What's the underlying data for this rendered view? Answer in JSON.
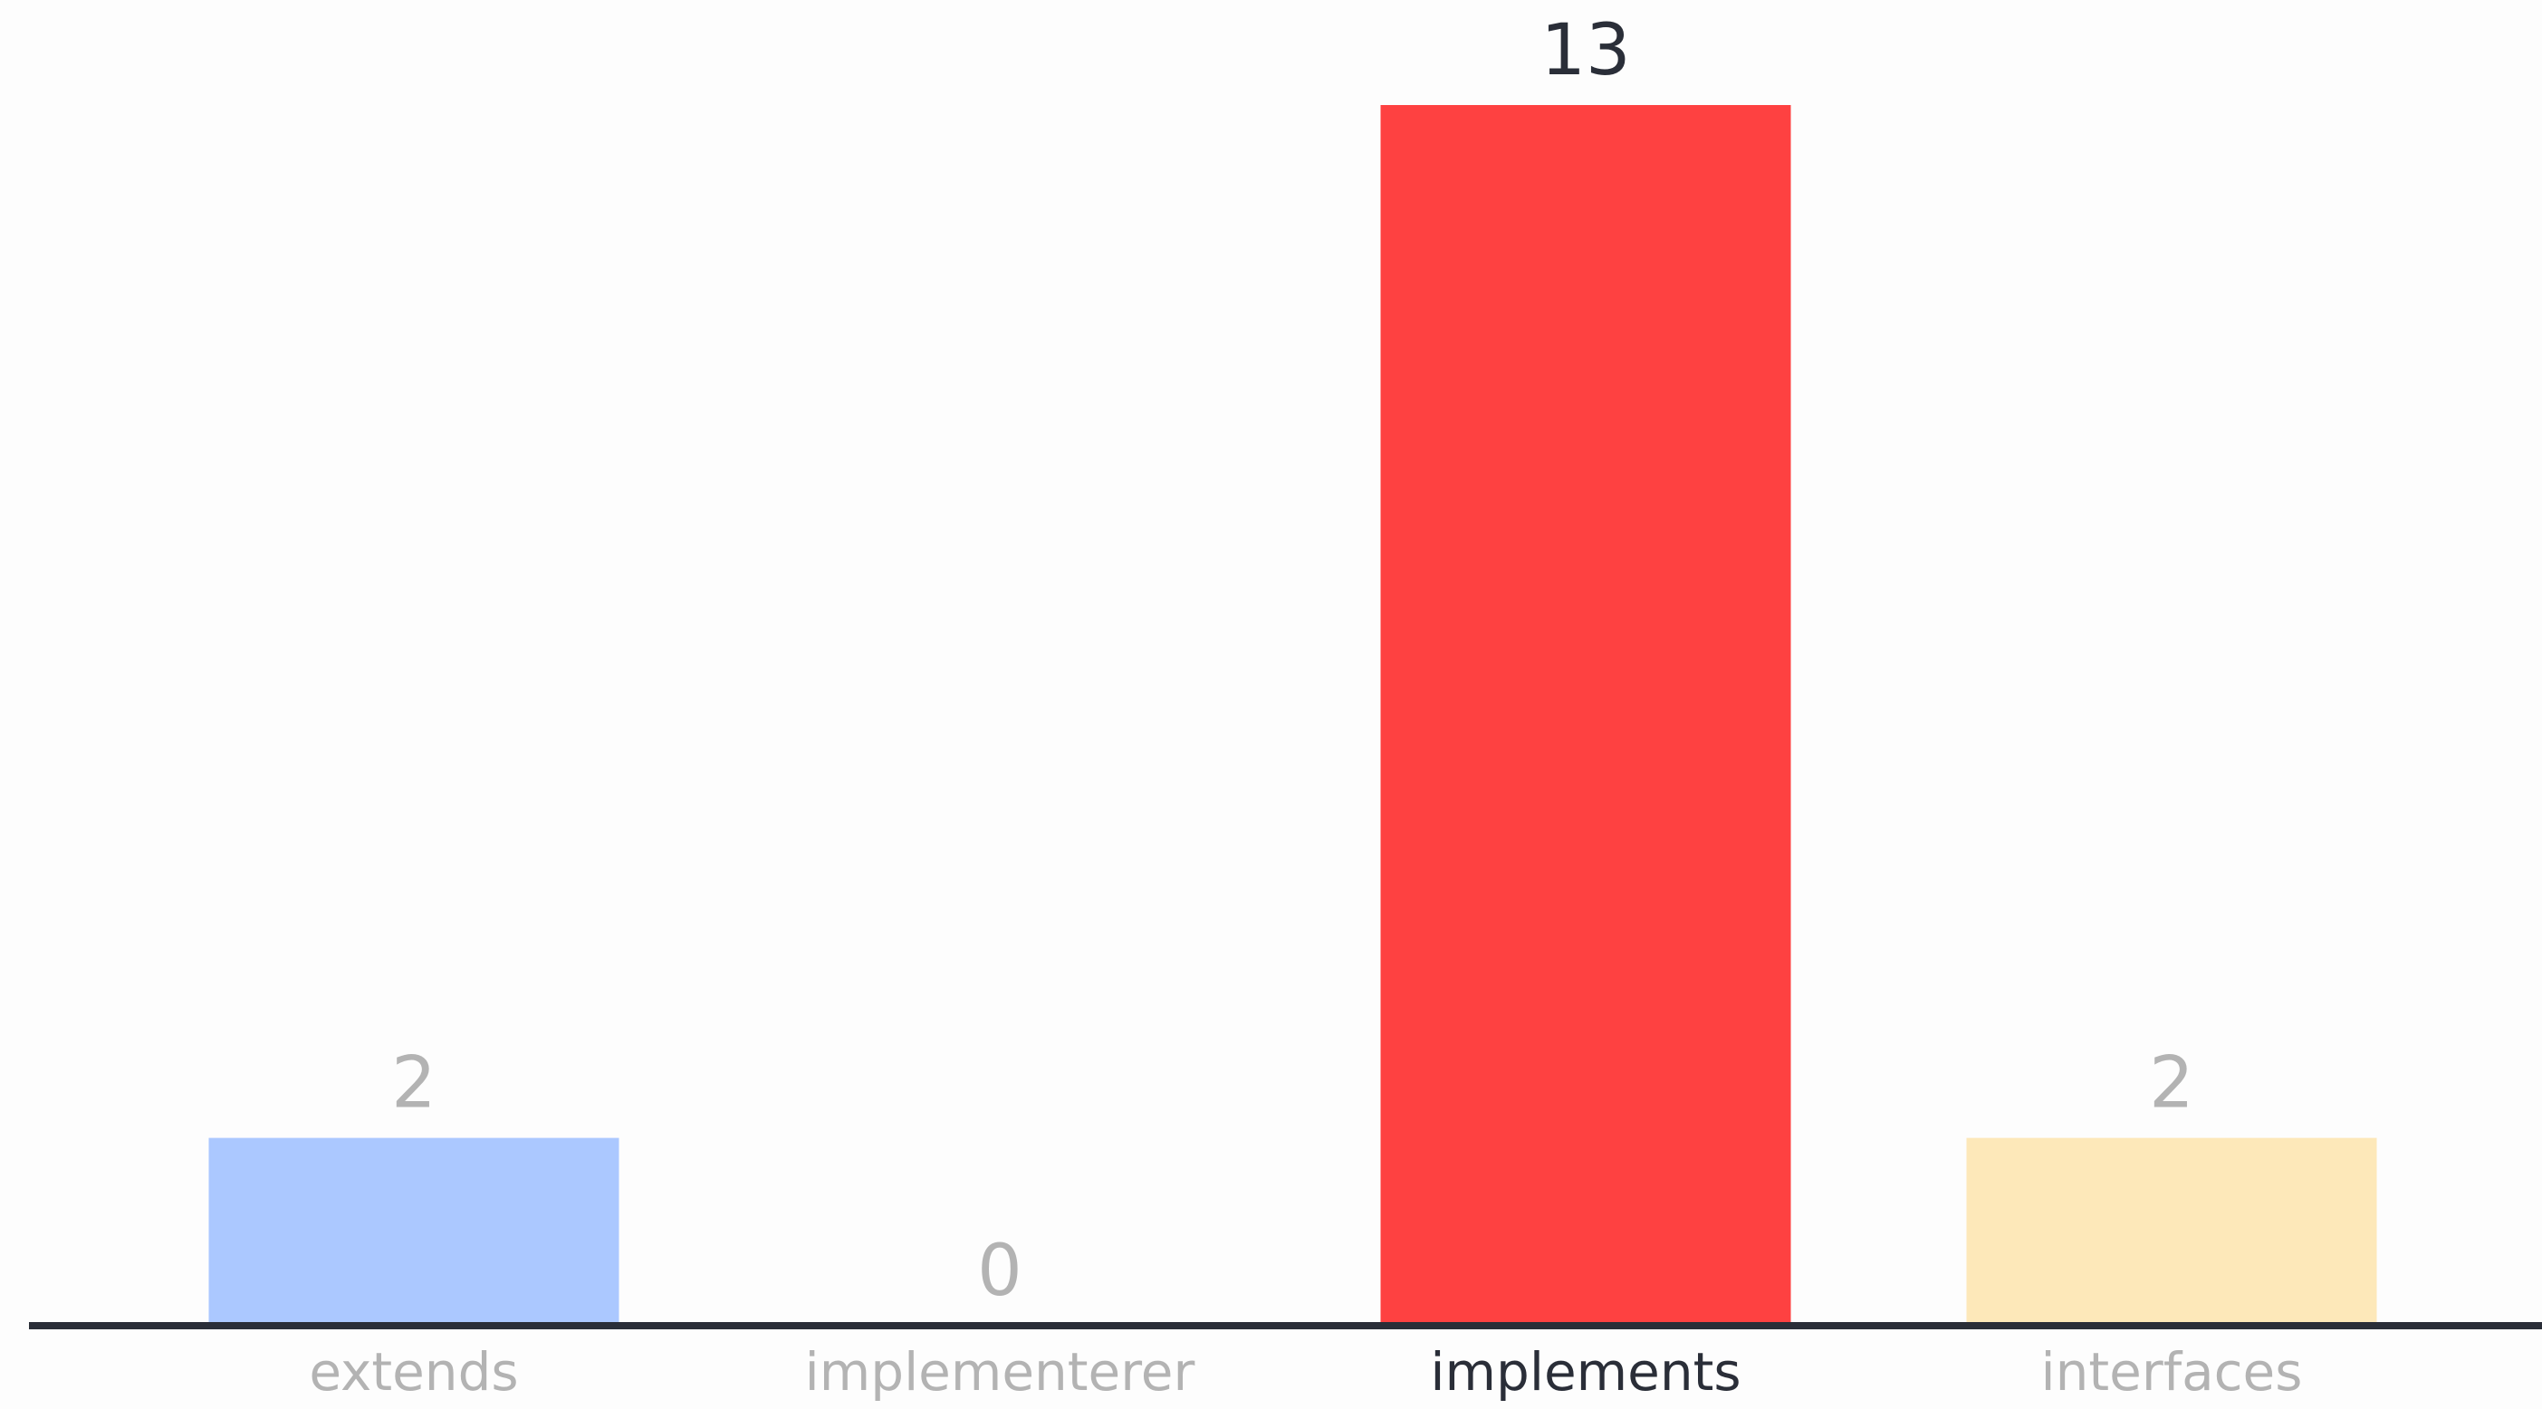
{
  "chart_data": {
    "type": "bar",
    "categories": [
      "extends",
      "implementerer",
      "implements",
      "interfaces"
    ],
    "values": [
      2,
      0,
      13,
      2
    ],
    "highlighted": "implements",
    "colors": {
      "extends": "#abc8ff",
      "implementerer": "#d9d9d9",
      "implements": "#fe4141",
      "interfaces": "#fde8b9"
    },
    "label_colors": {
      "muted": "#b3b3b3",
      "highlight": "#2a2e38"
    },
    "axis_color": "#2a2e38",
    "ylim": [
      0,
      13
    ],
    "title": "",
    "xlabel": "",
    "ylabel": "",
    "grid": false,
    "legend": "none"
  }
}
